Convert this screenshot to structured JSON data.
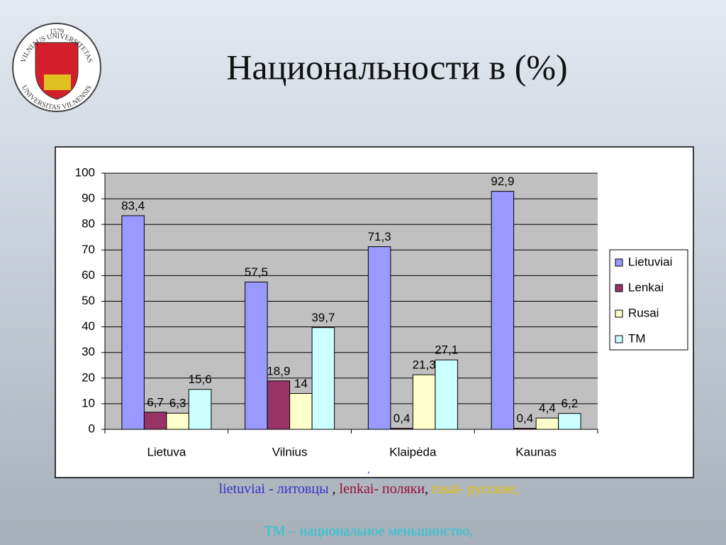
{
  "title": "Национальности в (%)",
  "logo": {
    "top": "VILNIAUS UNIVERSITETAS",
    "year": "1579",
    "bottom": "UNIVERSITAS VILNENSIS"
  },
  "chart_data": {
    "type": "bar",
    "categories": [
      "Lietuva",
      "Vilnius",
      "Klaipėda",
      "Kaunas"
    ],
    "series": [
      {
        "name": "Lietuviai",
        "color": "#9999ff",
        "values": [
          83.4,
          57.5,
          71.3,
          92.9
        ],
        "value_labels": [
          "83,4",
          "57,5",
          "71,3",
          "92,9"
        ]
      },
      {
        "name": "Lenkai",
        "color": "#993366",
        "values": [
          6.7,
          18.9,
          0.4,
          0.4
        ],
        "value_labels": [
          "6,7",
          "18,9",
          "0,4",
          "0,4"
        ]
      },
      {
        "name": "Rusai",
        "color": "#ffffcc",
        "values": [
          6.3,
          14,
          21.3,
          4.4
        ],
        "value_labels": [
          "6,3",
          "14",
          "21,3",
          "4,4"
        ]
      },
      {
        "name": "TM",
        "color": "#ccffff",
        "values": [
          15.6,
          39.7,
          27.1,
          6.2
        ],
        "value_labels": [
          "15,6",
          "39,7",
          "27,1",
          "6,2"
        ]
      }
    ],
    "ylim": [
      0,
      100
    ],
    "yticks": [
      0,
      10,
      20,
      30,
      40,
      50,
      60,
      70,
      80,
      90,
      100
    ],
    "grid": true,
    "legend": "right"
  },
  "caption": {
    "comma": ",",
    "line1": [
      "lietuviai - литовцы",
      " , ",
      "lenkai- поляки",
      ", ",
      "rusai- русские,"
    ],
    "line2": "TM – национальное меньшинство,"
  }
}
